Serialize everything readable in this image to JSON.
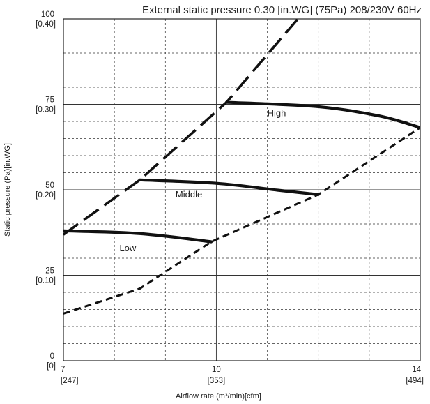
{
  "chart_data": {
    "type": "line",
    "title": "External static pressure 0.30 [in.WG] (75Pa)  208/230V 60Hz",
    "xlabel": "Airflow rate (m³/min)[cfm]",
    "ylabel": "Static pressure (Pa)[in.WG]",
    "xlim": [
      7,
      14
    ],
    "ylim": [
      0,
      100
    ],
    "x_ticks": [
      {
        "value": 7,
        "label": "7",
        "sublabel": "[247]"
      },
      {
        "value": 10,
        "label": "10",
        "sublabel": "[353]"
      },
      {
        "value": 14,
        "label": "14",
        "sublabel": "[494]"
      }
    ],
    "y_ticks": [
      {
        "value": 0,
        "label": "0",
        "sublabel": "[0]"
      },
      {
        "value": 25,
        "label": "25",
        "sublabel": "[0.10]"
      },
      {
        "value": 50,
        "label": "50",
        "sublabel": "[0.20]"
      },
      {
        "value": 75,
        "label": "75",
        "sublabel": "[0.30]"
      },
      {
        "value": 100,
        "label": "100",
        "sublabel": "[0.40]"
      }
    ],
    "grid": "dashed minor grid, solid major lines",
    "series": [
      {
        "name": "High",
        "style": "solid",
        "points": [
          [
            10.2,
            75.6
          ],
          [
            12.0,
            74.3
          ],
          [
            13.2,
            71.6
          ],
          [
            14.0,
            68.2
          ]
        ]
      },
      {
        "name": "Middle",
        "style": "solid",
        "points": [
          [
            8.5,
            52.9
          ],
          [
            10.0,
            51.9
          ],
          [
            11.2,
            49.9
          ],
          [
            12.0,
            48.6
          ]
        ]
      },
      {
        "name": "Low",
        "style": "solid",
        "points": [
          [
            7.0,
            38.0
          ],
          [
            8.5,
            37.2
          ],
          [
            9.9,
            34.8
          ]
        ]
      },
      {
        "style": "long-dash",
        "points": [
          [
            7.0,
            36.9
          ],
          [
            8.5,
            52.9
          ],
          [
            10.2,
            75.6
          ],
          [
            11.6,
            100.0
          ]
        ]
      },
      {
        "style": "short-dash",
        "points": [
          [
            7.0,
            13.8
          ],
          [
            8.5,
            21.1
          ],
          [
            9.9,
            34.8
          ],
          [
            12.0,
            48.6
          ],
          [
            14.0,
            68.2
          ]
        ]
      }
    ],
    "annotations": [
      {
        "text": "High",
        "x": 11.0,
        "y": 71.5
      },
      {
        "text": "Middle",
        "x": 9.2,
        "y": 47.8
      },
      {
        "text": "Low",
        "x": 8.1,
        "y": 32.0
      }
    ]
  }
}
